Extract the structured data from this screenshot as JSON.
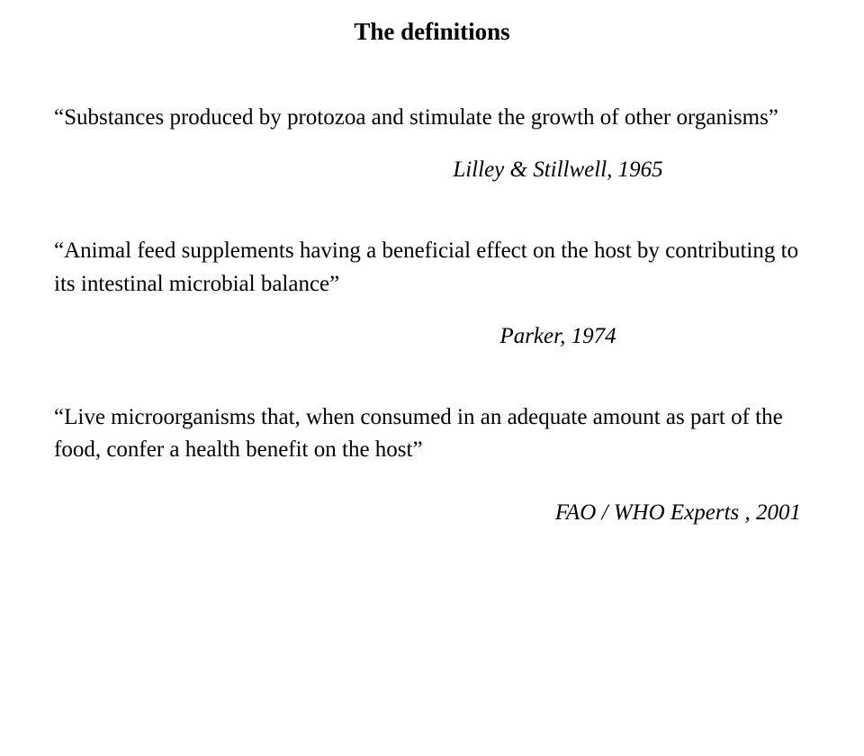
{
  "title": "The definitions",
  "definitions": [
    {
      "text": "“Substances produced by protozoa and stimulate the growth of other organisms”",
      "source": "Lilley & Stillwell, 1965"
    },
    {
      "text": "“Animal feed supplements having a beneficial effect on the host by contributing to its intestinal microbial balance”",
      "source": "Parker, 1974"
    },
    {
      "text": "“Live microorganisms that, when consumed in an adequate amount as part of the food, confer a health benefit on the host”",
      "source": "FAO / WHO Experts , 2001"
    }
  ],
  "style": {
    "font_family": "Comic Sans MS",
    "title_fontsize": 27,
    "body_fontsize": 25,
    "text_color": "#000000",
    "background_color": "#ffffff",
    "line_height": 1.45
  }
}
